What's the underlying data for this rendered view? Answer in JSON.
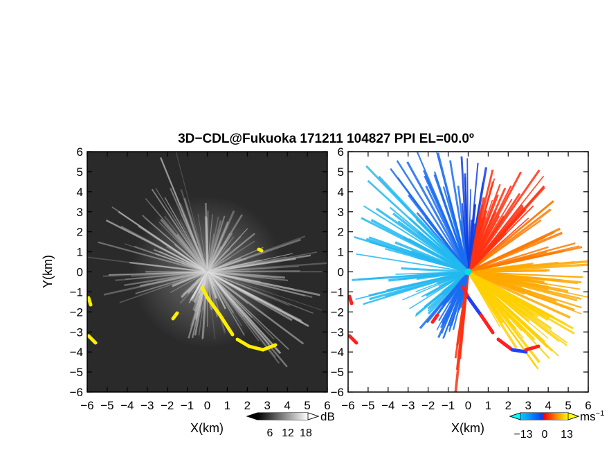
{
  "chart_data": {
    "title": "3D−CDL@Fukuoka 171211 104827 PPI EL=00.0º",
    "type": "heatmap",
    "panels": [
      {
        "id": "reflectivity",
        "xlabel": "X(km)",
        "ylabel": "Y(km)",
        "xlim": [
          -6,
          6
        ],
        "ylim": [
          -6,
          6
        ],
        "xticks": [
          "−6",
          "−5",
          "−4",
          "−3",
          "−2",
          "−1",
          "0",
          "1",
          "2",
          "3",
          "4",
          "5",
          "6"
        ],
        "yticks": [
          "6",
          "5",
          "4",
          "3",
          "2",
          "1",
          "0",
          "−1",
          "−2",
          "−3",
          "−4",
          "−5",
          "−6"
        ],
        "colorbar": {
          "ticks": [
            "6",
            "12",
            "18"
          ],
          "unit": "dB",
          "colors": [
            "#000000",
            "#ffffff"
          ]
        },
        "background": "#2a2a2a",
        "highlight_color": "#ffee00"
      },
      {
        "id": "velocity",
        "xlabel": "X(km)",
        "xlim": [
          -6,
          6
        ],
        "ylim": [
          -6,
          6
        ],
        "xticks": [
          "−6",
          "−5",
          "−4",
          "−3",
          "−2",
          "−1",
          "0",
          "1",
          "2",
          "3",
          "4",
          "5",
          "6"
        ],
        "yticks": [
          "6",
          "5",
          "4",
          "3",
          "2",
          "1",
          "0",
          "−1",
          "−2",
          "−3",
          "−4",
          "−5",
          "−6"
        ],
        "colorbar": {
          "ticks": [
            "−13",
            "0",
            "13"
          ],
          "unit": "ms",
          "unit_sup": "−1",
          "colors": [
            "#00ccff",
            "#0044ff",
            "#ff0000",
            "#ff8800",
            "#ffff00"
          ]
        }
      }
    ]
  }
}
